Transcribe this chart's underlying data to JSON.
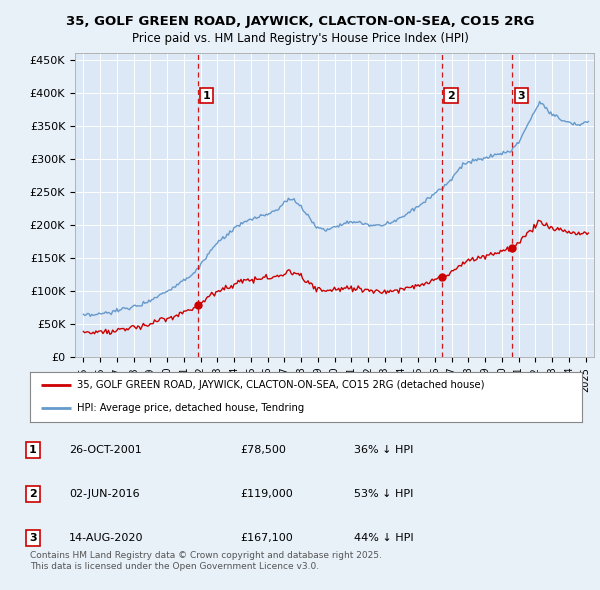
{
  "title1": "35, GOLF GREEN ROAD, JAYWICK, CLACTON-ON-SEA, CO15 2RG",
  "title2": "Price paid vs. HM Land Registry's House Price Index (HPI)",
  "background_color": "#e8f0f8",
  "plot_bg_color": "#dce8f5",
  "hpi_color": "#6699cc",
  "price_color": "#cc0000",
  "vline_color": "#cc0000",
  "sales": [
    {
      "date_num": 2001.82,
      "price": 78500,
      "label": "1"
    },
    {
      "date_num": 2016.42,
      "price": 119000,
      "label": "2"
    },
    {
      "date_num": 2020.62,
      "price": 167100,
      "label": "3"
    }
  ],
  "sale_table": [
    {
      "num": "1",
      "date": "26-OCT-2001",
      "price": "£78,500",
      "note": "36% ↓ HPI"
    },
    {
      "num": "2",
      "date": "02-JUN-2016",
      "price": "£119,000",
      "note": "53% ↓ HPI"
    },
    {
      "num": "3",
      "date": "14-AUG-2020",
      "price": "£167,100",
      "note": "44% ↓ HPI"
    }
  ],
  "legend_line1": "35, GOLF GREEN ROAD, JAYWICK, CLACTON-ON-SEA, CO15 2RG (detached house)",
  "legend_line2": "HPI: Average price, detached house, Tendring",
  "footer1": "Contains HM Land Registry data © Crown copyright and database right 2025.",
  "footer2": "This data is licensed under the Open Government Licence v3.0.",
  "ylim": [
    0,
    460000
  ],
  "yticks": [
    0,
    50000,
    100000,
    150000,
    200000,
    250000,
    300000,
    350000,
    400000,
    450000
  ],
  "xlim": [
    1994.5,
    2025.5
  ]
}
